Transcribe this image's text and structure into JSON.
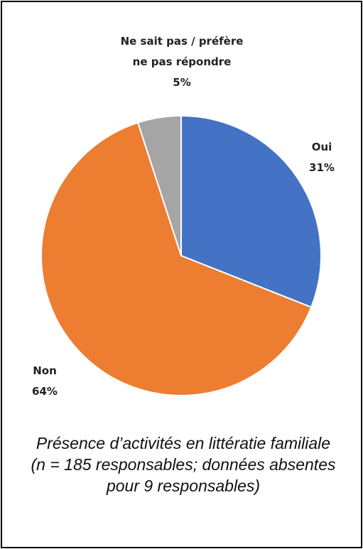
{
  "chart_data": {
    "type": "pie",
    "categories": [
      "Oui",
      "Non",
      "Ne sait pas / préfère ne pas répondre"
    ],
    "values": [
      31,
      64,
      5
    ],
    "value_labels": [
      "31%",
      "64%",
      "5%"
    ],
    "colors": [
      "#4472c4",
      "#ed7d31",
      "#a5a5a5"
    ],
    "title": "Présence d’activités en littératie familiale",
    "subtitle": "(n = 185 responsables; données absentes pour 9 responsables)"
  }
}
